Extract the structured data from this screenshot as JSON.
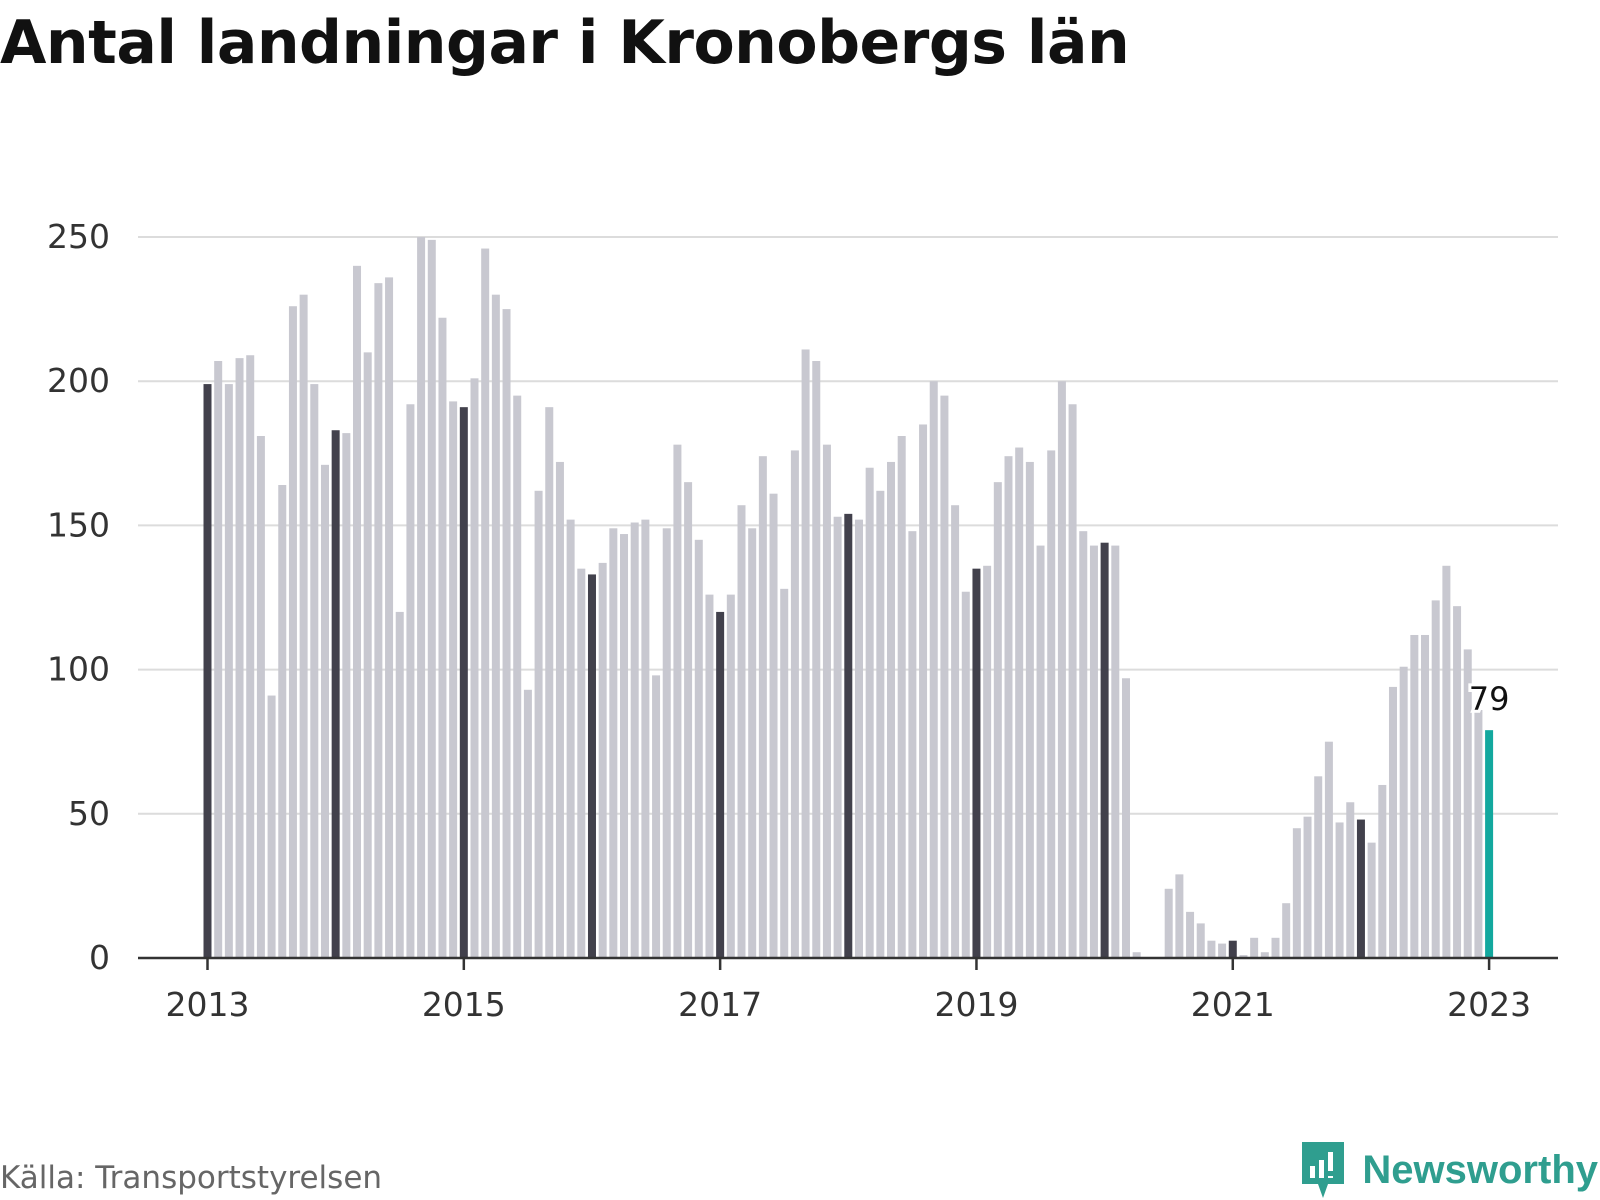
{
  "title": "Antal landningar i Kronobergs län",
  "source": "Källa: Transportstyrelsen",
  "brand": {
    "name": "Newsworthy",
    "icon": "newsworthy-logo-icon"
  },
  "colors": {
    "bar": "#c8c8d0",
    "january_bar": "#42414c",
    "latest_bar": "#13a89e",
    "grid": "#dcdcdc",
    "axis": "#333333",
    "brand": "#2f9e8f"
  },
  "chart_data": {
    "type": "bar",
    "title": "Antal landningar i Kronobergs län",
    "x_start": "2013-01",
    "frequency": "monthly",
    "x_tick_labels": [
      "2013",
      "2015",
      "2017",
      "2019",
      "2021",
      "2023"
    ],
    "y_tick_labels": [
      "0",
      "50",
      "100",
      "150",
      "200",
      "250"
    ],
    "ylim": [
      0,
      250
    ],
    "grid": true,
    "annotation": {
      "text": "79",
      "target": "2023-01"
    },
    "values": [
      199,
      207,
      199,
      208,
      209,
      181,
      91,
      164,
      226,
      230,
      199,
      171,
      183,
      182,
      240,
      210,
      234,
      236,
      120,
      192,
      250,
      249,
      222,
      193,
      191,
      201,
      246,
      230,
      225,
      195,
      93,
      162,
      191,
      172,
      152,
      135,
      133,
      137,
      149,
      147,
      151,
      152,
      98,
      149,
      178,
      165,
      145,
      126,
      120,
      126,
      157,
      149,
      174,
      161,
      128,
      176,
      211,
      207,
      178,
      153,
      154,
      152,
      170,
      162,
      172,
      181,
      148,
      185,
      200,
      195,
      157,
      127,
      135,
      136,
      165,
      174,
      177,
      172,
      143,
      176,
      200,
      192,
      148,
      143,
      144,
      143,
      97,
      2,
      0,
      0,
      24,
      29,
      16,
      12,
      6,
      5,
      6,
      1,
      7,
      2,
      7,
      19,
      45,
      49,
      63,
      75,
      47,
      54,
      48,
      40,
      60,
      94,
      101,
      112,
      112,
      124,
      136,
      122,
      107,
      86,
      79
    ]
  }
}
